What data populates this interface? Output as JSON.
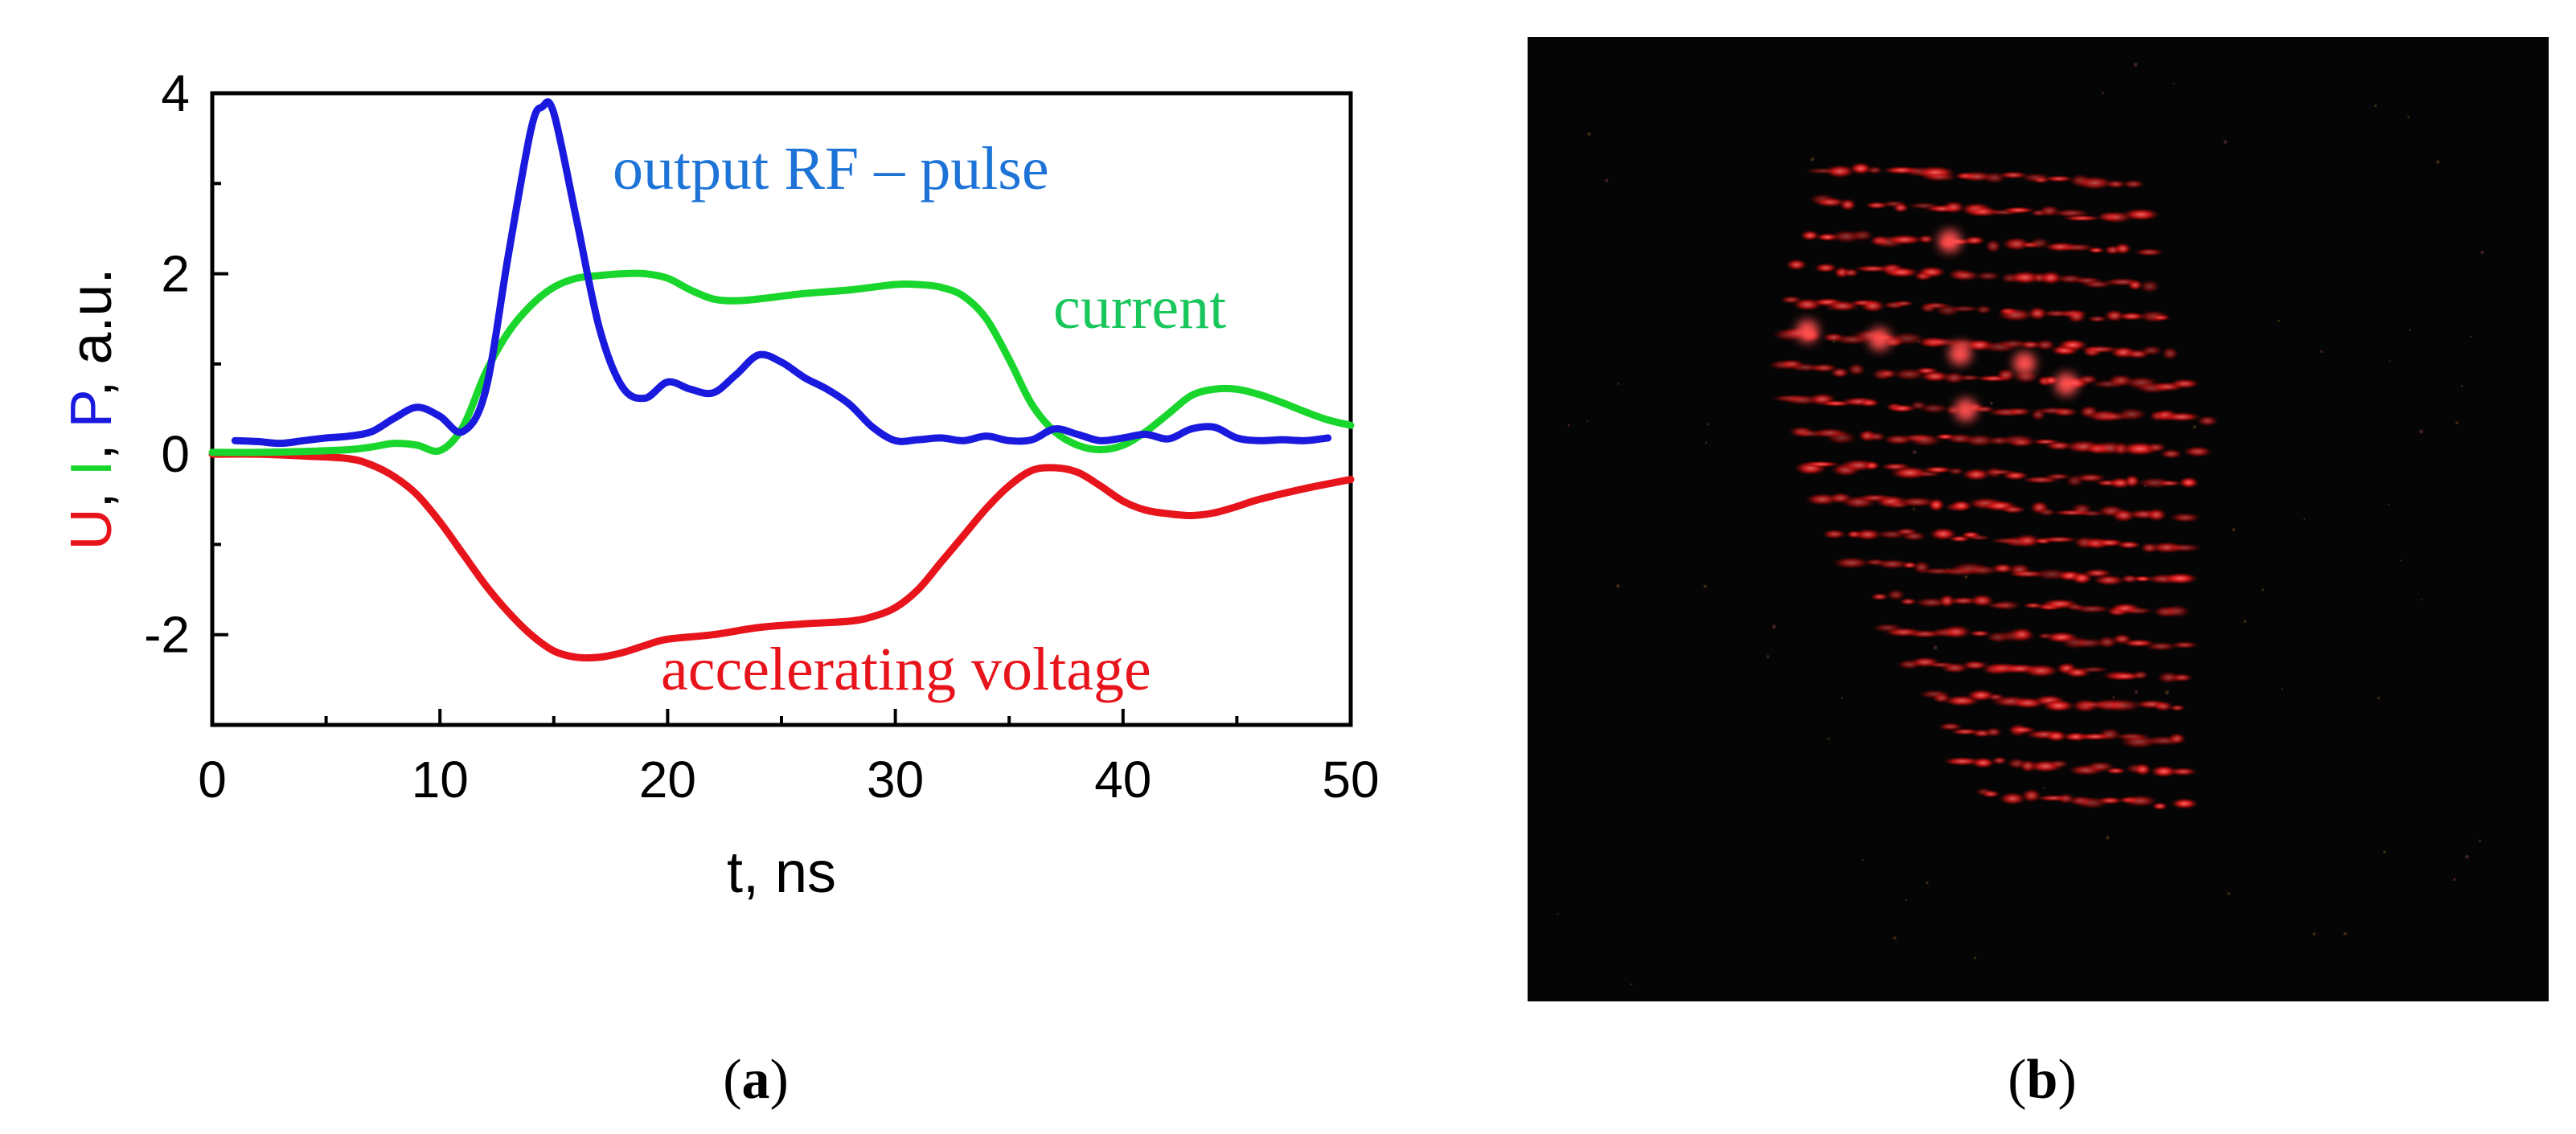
{
  "panel_a_label": "a",
  "panel_b_label": "b",
  "chart_data": {
    "type": "line",
    "title": "",
    "xlabel": "t, ns",
    "ylabel_parts": [
      {
        "text": "U",
        "color": "#e8141c"
      },
      {
        "text": ", ",
        "color": "#000000"
      },
      {
        "text": "I",
        "color": "#19d62c"
      },
      {
        "text": ", ",
        "color": "#000000"
      },
      {
        "text": "P",
        "color": "#1a1adf"
      },
      {
        "text": ", a.u.",
        "color": "#000000"
      }
    ],
    "xlim": [
      0,
      50
    ],
    "ylim": [
      -3,
      4
    ],
    "xticks": [
      0,
      10,
      20,
      30,
      40,
      50
    ],
    "yticks": [
      -2,
      0,
      2,
      4
    ],
    "series": [
      {
        "name": "accelerating voltage",
        "color": "#e8141c",
        "x": [
          0,
          2,
          4,
          6,
          7,
          8,
          9,
          10,
          11,
          12,
          13,
          14,
          15,
          16,
          17,
          18,
          19,
          20,
          22,
          24,
          26,
          28,
          29,
          30,
          31,
          32,
          33,
          34,
          35,
          36,
          37,
          38,
          39,
          40,
          41,
          42,
          43,
          44,
          45,
          46,
          48,
          50
        ],
        "values": [
          0.0,
          0.0,
          -0.02,
          -0.05,
          -0.12,
          -0.25,
          -0.45,
          -0.75,
          -1.1,
          -1.45,
          -1.75,
          -2.0,
          -2.18,
          -2.25,
          -2.25,
          -2.2,
          -2.12,
          -2.05,
          -2.0,
          -1.92,
          -1.88,
          -1.85,
          -1.8,
          -1.7,
          -1.5,
          -1.2,
          -0.9,
          -0.6,
          -0.35,
          -0.18,
          -0.15,
          -0.2,
          -0.35,
          -0.52,
          -0.62,
          -0.66,
          -0.68,
          -0.65,
          -0.58,
          -0.5,
          -0.38,
          -0.28
        ]
      },
      {
        "name": "current",
        "color": "#19d62c",
        "x": [
          0,
          2,
          4,
          6,
          7,
          8,
          9,
          10,
          11,
          12,
          13,
          14,
          15,
          16,
          17,
          18,
          19,
          20,
          21,
          22,
          23,
          24,
          26,
          28,
          30,
          31,
          32,
          33,
          34,
          35,
          36,
          37,
          38,
          39,
          40,
          41,
          42,
          43,
          44,
          45,
          46,
          47,
          48,
          49,
          50
        ],
        "values": [
          0.02,
          0.02,
          0.03,
          0.05,
          0.08,
          0.12,
          0.1,
          0.04,
          0.3,
          0.9,
          1.35,
          1.65,
          1.85,
          1.95,
          1.98,
          2.0,
          2.0,
          1.95,
          1.82,
          1.72,
          1.7,
          1.72,
          1.78,
          1.82,
          1.88,
          1.88,
          1.85,
          1.75,
          1.5,
          1.05,
          0.55,
          0.25,
          0.1,
          0.05,
          0.1,
          0.25,
          0.45,
          0.65,
          0.72,
          0.72,
          0.66,
          0.57,
          0.47,
          0.38,
          0.32
        ]
      },
      {
        "name": "output RF – pulse",
        "color": "#1a1adf",
        "x": [
          1,
          2,
          3,
          4,
          5,
          6,
          7,
          8,
          9,
          10,
          11,
          12,
          13,
          14,
          14.5,
          15,
          16,
          17,
          18,
          19,
          20,
          21,
          22,
          23,
          24,
          25,
          26,
          27,
          28,
          29,
          30,
          31,
          32,
          33,
          34,
          35,
          36,
          37,
          38,
          39,
          40,
          41,
          42,
          43,
          44,
          45,
          46,
          47,
          48,
          49
        ],
        "values": [
          0.15,
          0.14,
          0.12,
          0.15,
          0.18,
          0.2,
          0.25,
          0.4,
          0.52,
          0.42,
          0.25,
          0.7,
          2.2,
          3.6,
          3.85,
          3.78,
          2.6,
          1.4,
          0.75,
          0.62,
          0.8,
          0.72,
          0.68,
          0.88,
          1.1,
          1.02,
          0.85,
          0.72,
          0.55,
          0.3,
          0.15,
          0.16,
          0.18,
          0.15,
          0.2,
          0.15,
          0.16,
          0.28,
          0.22,
          0.15,
          0.18,
          0.22,
          0.17,
          0.28,
          0.3,
          0.18,
          0.15,
          0.16,
          0.15,
          0.18
        ]
      }
    ],
    "annotations": {
      "rf": "output RF – pulse",
      "current": "current",
      "voltage": "accelerating voltage"
    }
  },
  "photo": {
    "description_icon": "red-speckle-photo-icon"
  }
}
